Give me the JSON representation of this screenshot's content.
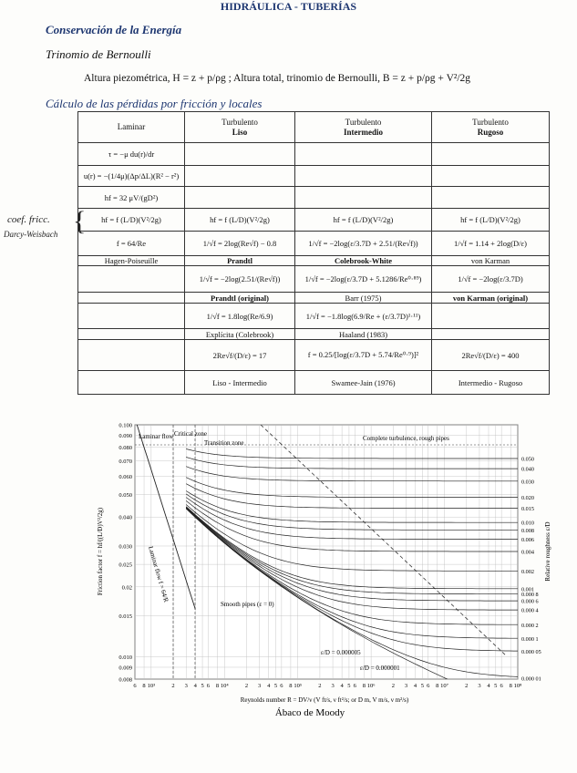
{
  "header": {
    "title": "HIDRÁULICA - TUBERÍAS"
  },
  "sections": {
    "energy_title": "Conservación de la Energía",
    "bernoulli_title": "Trinomio de Bernoulli",
    "bernoulli_formula": "Altura piezométrica, H = z + p/ρg ; Altura total, trinomio de Bernoulli, B = z + p/ρg + V²/2g",
    "losses_title": "Cálculo de las pérdidas por fricción y locales"
  },
  "handwritten": [
    "coef. fricc.",
    "Darcy-Weisbach"
  ],
  "table": {
    "header": [
      [
        "Laminar"
      ],
      [
        "Turbulento",
        "Liso"
      ],
      [
        "Turbulento",
        "Intermedio"
      ],
      [
        "Turbulento",
        "Rugoso"
      ]
    ],
    "rows": [
      [
        "τ = −μ du(r)/dr",
        null,
        null,
        null
      ],
      [
        "u(r) = −(1/4μ)(Δp/ΔL)(R² − r²)",
        null,
        null,
        null
      ],
      [
        "hf = 32 μV/(gD²)",
        null,
        null,
        null
      ],
      [
        "hf = f (L/D)(V²/2g)",
        "hf = f (L/D)(V²/2g)",
        "hf = f (L/D)(V²/2g)",
        "hf = f (L/D)(V²/2g)"
      ],
      [
        "f = 64/Re",
        "1/√f = 2log(Re√f) − 0.8",
        "1/√f = −2log(ε/3.7D + 2.51/(Re√f))",
        "1/√f = 1.14 + 2log(D/ε)"
      ],
      [
        "Hagen-Poiseuille",
        "Prandtl",
        "Colebrook-White",
        "von Karman"
      ],
      [
        null,
        "1/√f = −2log(2.51/(Re√f))",
        "1/√f = −2log(ε/3.7D + 5.1286/Re⁰·⁸⁹)",
        "1/√f = −2log(ε/3.7D)"
      ],
      [
        null,
        "Prandtl (original)",
        "Barr (1975)",
        "von Karman (original)"
      ],
      [
        null,
        "1/√f = 1.8log(Re/6.9)",
        "1/√f = −1.8log(6.9/Re + (ε/3.7D)¹·¹¹)",
        null
      ],
      [
        null,
        "Explícita (Colebrook)",
        "Haaland (1983)",
        null
      ],
      [
        null,
        "2Re√f/(D/ε) = 17",
        "f = 0.25/[log(ε/3.7D + 5.74/Re⁰·⁹)]²",
        "2Re√f/(D/ε) = 400"
      ],
      [
        null,
        "Liso - Intermedio",
        "Swamee-Jain (1976)",
        "Intermedio - Rugoso"
      ]
    ]
  },
  "moody": {
    "caption": "Ábaco de Moody",
    "x_label": "Reynolds number R = DV/ν (V ft/s, ν ft²/s; or D m, V m/s, ν m²/s)",
    "y_label": "Friction factor f = hf/((L/D)V²/2g)",
    "y2_label": "Relative roughness ε/D",
    "zones": [
      "Laminar flow",
      "Critical zone",
      "Transition zone",
      "Complete turbulence, rough pipes"
    ],
    "annotations": [
      "Laminar flow f = 64/R",
      "Smooth pipes (ε = 0)",
      "ε/D = 0.000005",
      "ε/D = 0.000001"
    ],
    "xlim": [
      600,
      100000000
    ],
    "ylim": [
      0.008,
      0.1
    ],
    "log_scale": true,
    "grid": true,
    "yticks": [
      {
        "value": 0.1,
        "label": "0.100"
      },
      {
        "value": 0.09,
        "label": "0.090"
      },
      {
        "value": 0.08,
        "label": "0.080"
      },
      {
        "value": 0.07,
        "label": "0.070"
      },
      {
        "value": 0.06,
        "label": "0.060"
      },
      {
        "value": 0.05,
        "label": "0.050"
      },
      {
        "value": 0.04,
        "label": "0.040"
      },
      {
        "value": 0.03,
        "label": "0.030"
      },
      0.025,
      0.02,
      0.015,
      {
        "value": 0.01,
        "label": "0.010"
      },
      0.009,
      0.008
    ],
    "xticks": [
      {
        "value": 600,
        "label": "6"
      },
      {
        "value": 800,
        "label": "8"
      },
      {
        "value": 1000,
        "label": "10³"
      },
      {
        "value": 2000,
        "label": "2"
      },
      {
        "value": 3000,
        "label": "3"
      },
      {
        "value": 4000,
        "label": "4"
      },
      {
        "value": 5000,
        "label": "5"
      },
      {
        "value": 6000,
        "label": "6"
      },
      {
        "value": 8000,
        "label": "8"
      },
      {
        "value": 10000,
        "label": "10⁴"
      },
      {
        "value": 20000,
        "label": "2"
      },
      {
        "value": 30000,
        "label": "3"
      },
      {
        "value": 40000,
        "label": "4"
      },
      {
        "value": 50000,
        "label": "5"
      },
      {
        "value": 60000,
        "label": "6"
      },
      {
        "value": 80000,
        "label": "8"
      },
      {
        "value": 100000,
        "label": "10⁵"
      },
      {
        "value": 200000,
        "label": "2"
      },
      {
        "value": 300000,
        "label": "3"
      },
      {
        "value": 400000,
        "label": "4"
      },
      {
        "value": 500000,
        "label": "5"
      },
      {
        "value": 600000,
        "label": "6"
      },
      {
        "value": 800000,
        "label": "8"
      },
      {
        "value": 1000000,
        "label": "10⁶"
      },
      {
        "value": 2000000,
        "label": "2"
      },
      {
        "value": 3000000,
        "label": "3"
      },
      {
        "value": 4000000,
        "label": "4"
      },
      {
        "value": 5000000,
        "label": "5"
      },
      {
        "value": 6000000,
        "label": "6"
      },
      {
        "value": 8000000,
        "label": "8"
      },
      {
        "value": 10000000,
        "label": "10⁷"
      },
      {
        "value": 20000000,
        "label": "2"
      },
      {
        "value": 30000000,
        "label": "3"
      },
      {
        "value": 40000000,
        "label": "4"
      },
      {
        "value": 50000000,
        "label": "5"
      },
      {
        "value": 60000000,
        "label": "6"
      },
      {
        "value": 80000000,
        "label": "8"
      },
      {
        "value": 100000000,
        "label": "10⁸"
      }
    ],
    "y2ticks": [
      {
        "value": 0.05,
        "label": "0.050"
      },
      {
        "value": 0.04,
        "label": "0.040"
      },
      {
        "value": 0.03,
        "label": "0.030"
      },
      {
        "value": 0.02,
        "label": "0.020"
      },
      0.015,
      {
        "value": 0.01,
        "label": "0.010"
      },
      0.008,
      0.006,
      0.004,
      0.002,
      0.001,
      {
        "value": 0.0008,
        "label": "0.000 8"
      },
      {
        "value": 0.0006,
        "label": "0.000 6"
      },
      {
        "value": 0.0004,
        "label": "0.000 4"
      },
      {
        "value": 0.0002,
        "label": "0.000 2"
      },
      {
        "value": 0.0001,
        "label": "0.000 1"
      },
      {
        "value": 5e-05,
        "label": "0.000 05"
      },
      {
        "value": 1e-05,
        "label": "0.000 01"
      }
    ]
  }
}
